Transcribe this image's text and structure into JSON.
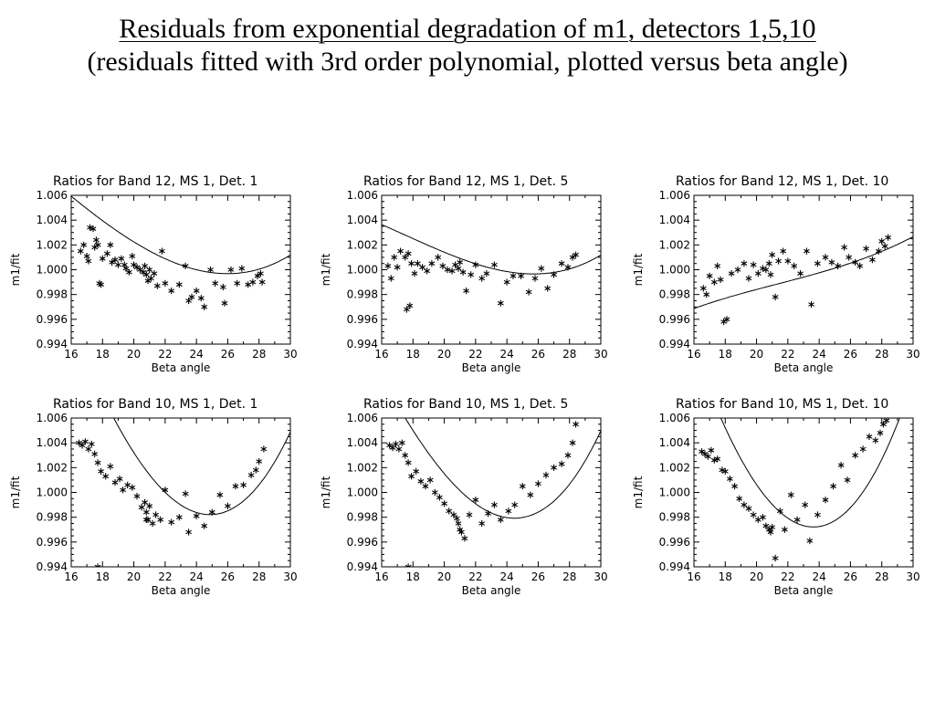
{
  "page": {
    "title": "Residuals from exponential degradation of m1, detectors 1,5,10",
    "subtitle": "(residuals fitted with 3rd order polynomial, plotted versus beta angle)"
  },
  "chart_data": [
    {
      "type": "scatter",
      "title": "Ratios for Band  12, MS 1, Det. 1",
      "xlabel": "Beta angle",
      "ylabel": "m1/fit",
      "xlim": [
        16,
        30
      ],
      "ylim": [
        0.994,
        1.006
      ],
      "xticks": [
        "16",
        "18",
        "20",
        "22",
        "24",
        "26",
        "28",
        "30"
      ],
      "yticks": [
        "0.994",
        "0.996",
        "0.998",
        "1.000",
        "1.002",
        "1.004",
        "1.006"
      ],
      "fit_coeffs": [
        1.0,
        -0.00031,
        7.15e-05,
        2.2e-06
      ],
      "points": [
        [
          16.6,
          1.0015
        ],
        [
          16.8,
          1.002
        ],
        [
          17.0,
          1.0011
        ],
        [
          17.1,
          1.0007
        ],
        [
          17.2,
          1.0034
        ],
        [
          17.4,
          1.0033
        ],
        [
          17.5,
          1.0018
        ],
        [
          17.6,
          1.0024
        ],
        [
          17.7,
          1.002
        ],
        [
          17.8,
          0.9989
        ],
        [
          17.9,
          0.9988
        ],
        [
          18.0,
          1.0009
        ],
        [
          18.3,
          1.0013
        ],
        [
          18.5,
          1.002
        ],
        [
          18.6,
          1.0006
        ],
        [
          18.8,
          1.0008
        ],
        [
          19.0,
          1.0004
        ],
        [
          19.2,
          1.0009
        ],
        [
          19.4,
          1.0004
        ],
        [
          19.5,
          1.0001
        ],
        [
          19.7,
          0.9998
        ],
        [
          19.9,
          1.0011
        ],
        [
          20.0,
          1.0004
        ],
        [
          20.2,
          1.0002
        ],
        [
          20.4,
          1.0
        ],
        [
          20.6,
          0.9998
        ],
        [
          20.7,
          1.0003
        ],
        [
          20.8,
          0.9996
        ],
        [
          20.9,
          0.9991
        ],
        [
          21.0,
          1.0
        ],
        [
          21.1,
          0.9993
        ],
        [
          21.3,
          0.9997
        ],
        [
          21.5,
          0.9987
        ],
        [
          21.8,
          1.0015
        ],
        [
          22.0,
          0.9989
        ],
        [
          22.4,
          0.9983
        ],
        [
          22.9,
          0.9988
        ],
        [
          23.3,
          1.0003
        ],
        [
          23.5,
          0.9975
        ],
        [
          23.7,
          0.9978
        ],
        [
          24.0,
          0.9983
        ],
        [
          24.3,
          0.9977
        ],
        [
          24.5,
          0.997
        ],
        [
          24.9,
          1.0
        ],
        [
          25.2,
          0.9989
        ],
        [
          25.7,
          0.9986
        ],
        [
          25.8,
          0.9973
        ],
        [
          26.2,
          1.0
        ],
        [
          26.6,
          0.9989
        ],
        [
          26.9,
          1.0001
        ],
        [
          27.3,
          0.9988
        ],
        [
          27.6,
          0.999
        ],
        [
          27.9,
          0.9995
        ],
        [
          28.1,
          0.9997
        ],
        [
          28.2,
          0.999
        ]
      ]
    },
    {
      "type": "scatter",
      "title": "Ratios for Band  12, MS 1, Det. 5",
      "xlabel": "Beta angle",
      "ylabel": "m1/fit",
      "xlim": [
        16,
        30
      ],
      "ylim": [
        0.994,
        1.006
      ],
      "xticks": [
        "16",
        "18",
        "20",
        "22",
        "24",
        "26",
        "28",
        "30"
      ],
      "yticks": [
        "0.994",
        "0.996",
        "0.998",
        "1.000",
        "1.002",
        "1.004",
        "1.006"
      ],
      "fit_coeffs": [
        0.99985,
        -0.000215,
        5.55e-05,
        2.9e-06
      ],
      "points": [
        [
          16.4,
          1.0003
        ],
        [
          16.6,
          0.9993
        ],
        [
          16.8,
          1.001
        ],
        [
          17.0,
          1.0002
        ],
        [
          17.2,
          1.0015
        ],
        [
          17.5,
          1.001
        ],
        [
          17.7,
          1.0013
        ],
        [
          17.9,
          1.0005
        ],
        [
          17.6,
          0.9968
        ],
        [
          17.8,
          0.9971
        ],
        [
          18.1,
          0.9997
        ],
        [
          18.3,
          1.0005
        ],
        [
          18.6,
          1.0002
        ],
        [
          18.9,
          0.9999
        ],
        [
          19.2,
          1.0005
        ],
        [
          19.6,
          1.001
        ],
        [
          19.9,
          1.0003
        ],
        [
          20.2,
          1.0
        ],
        [
          20.5,
          0.9999
        ],
        [
          20.7,
          1.0004
        ],
        [
          20.9,
          1.0001
        ],
        [
          21.0,
          1.0006
        ],
        [
          21.2,
          0.9998
        ],
        [
          21.4,
          0.9983
        ],
        [
          21.7,
          0.9996
        ],
        [
          22.0,
          1.0004
        ],
        [
          22.4,
          0.9993
        ],
        [
          22.7,
          0.9997
        ],
        [
          23.2,
          1.0004
        ],
        [
          23.6,
          0.9973
        ],
        [
          24.0,
          0.999
        ],
        [
          24.4,
          0.9995
        ],
        [
          24.9,
          0.9995
        ],
        [
          25.4,
          0.9982
        ],
        [
          25.8,
          0.9993
        ],
        [
          26.2,
          1.0001
        ],
        [
          26.6,
          0.9985
        ],
        [
          27.0,
          0.9996
        ],
        [
          27.5,
          1.0005
        ],
        [
          27.9,
          1.0002
        ],
        [
          28.2,
          1.001
        ],
        [
          28.4,
          1.0012
        ]
      ]
    },
    {
      "type": "scatter",
      "title": "Ratios for Band  12, MS 1, Det. 10",
      "xlabel": "Beta angle",
      "ylabel": "m1/fit",
      "xlim": [
        16,
        30
      ],
      "ylim": [
        0.994,
        1.006
      ],
      "xticks": [
        "16",
        "18",
        "20",
        "22",
        "24",
        "26",
        "28",
        "30"
      ],
      "yticks": [
        "0.994",
        "0.996",
        "0.998",
        "1.000",
        "1.002",
        "1.004",
        "1.006"
      ],
      "fit_coeffs": [
        0.99975,
        0.00036,
        1.2e-05,
        1.5e-06
      ],
      "points": [
        [
          16.6,
          0.9985
        ],
        [
          16.8,
          0.998
        ],
        [
          17.0,
          0.9995
        ],
        [
          17.3,
          0.999
        ],
        [
          17.5,
          1.0003
        ],
        [
          17.7,
          0.9992
        ],
        [
          17.9,
          0.9958
        ],
        [
          18.1,
          0.996
        ],
        [
          18.4,
          0.9997
        ],
        [
          18.8,
          1.0
        ],
        [
          19.2,
          1.0005
        ],
        [
          19.5,
          0.9993
        ],
        [
          19.8,
          1.0004
        ],
        [
          20.1,
          0.9997
        ],
        [
          20.4,
          1.0001
        ],
        [
          20.6,
          1.0
        ],
        [
          20.8,
          1.0005
        ],
        [
          20.9,
          0.9996
        ],
        [
          21.0,
          1.0012
        ],
        [
          21.2,
          0.9978
        ],
        [
          21.4,
          1.0007
        ],
        [
          21.7,
          1.0015
        ],
        [
          22.0,
          1.0007
        ],
        [
          22.4,
          1.0003
        ],
        [
          22.8,
          0.9997
        ],
        [
          23.2,
          1.0015
        ],
        [
          23.5,
          0.9972
        ],
        [
          23.9,
          1.0005
        ],
        [
          24.4,
          1.001
        ],
        [
          24.8,
          1.0006
        ],
        [
          25.2,
          1.0003
        ],
        [
          25.6,
          1.0018
        ],
        [
          25.9,
          1.001
        ],
        [
          26.3,
          1.0006
        ],
        [
          26.6,
          1.0003
        ],
        [
          27.0,
          1.0017
        ],
        [
          27.4,
          1.0008
        ],
        [
          27.8,
          1.0015
        ],
        [
          28.0,
          1.0023
        ],
        [
          28.2,
          1.0019
        ],
        [
          28.4,
          1.0026
        ]
      ]
    },
    {
      "type": "scatter",
      "title": "Ratios for Band  10, MS 1, Det. 1",
      "xlabel": "Beta angle",
      "ylabel": "m1/fit",
      "xlim": [
        16,
        30
      ],
      "ylim": [
        0.994,
        1.006
      ],
      "xticks": [
        "16",
        "18",
        "20",
        "22",
        "24",
        "26",
        "28",
        "30"
      ],
      "yticks": [
        "0.994",
        "0.996",
        "0.998",
        "1.000",
        "1.002",
        "1.004",
        "1.006"
      ],
      "fit_coeffs": [
        0.99838,
        -0.00039,
        0.000221,
        4.1e-06
      ],
      "points": [
        [
          16.5,
          1.004
        ],
        [
          16.7,
          1.0038
        ],
        [
          16.9,
          1.0041
        ],
        [
          17.1,
          1.0035
        ],
        [
          17.3,
          1.0039
        ],
        [
          17.5,
          1.0031
        ],
        [
          17.7,
          1.0024
        ],
        [
          17.9,
          1.0017
        ],
        [
          18.2,
          1.0013
        ],
        [
          18.5,
          1.0021
        ],
        [
          18.8,
          1.0008
        ],
        [
          19.1,
          1.0011
        ],
        [
          19.3,
          1.0002
        ],
        [
          19.6,
          1.0006
        ],
        [
          19.9,
          1.0004
        ],
        [
          20.2,
          0.9997
        ],
        [
          20.5,
          0.9988
        ],
        [
          20.7,
          0.9992
        ],
        [
          20.8,
          0.9984
        ],
        [
          20.9,
          0.9978
        ],
        [
          21.0,
          0.9989
        ],
        [
          21.2,
          0.9975
        ],
        [
          21.4,
          0.9982
        ],
        [
          21.7,
          0.9978
        ],
        [
          22.0,
          1.0002
        ],
        [
          22.4,
          0.9976
        ],
        [
          22.9,
          0.998
        ],
        [
          23.3,
          0.9999
        ],
        [
          23.5,
          0.9968
        ],
        [
          24.0,
          0.9981
        ],
        [
          24.5,
          0.9973
        ],
        [
          25.0,
          0.9984
        ],
        [
          25.5,
          0.9998
        ],
        [
          26.0,
          0.9989
        ],
        [
          26.5,
          1.0005
        ],
        [
          27.0,
          1.0006
        ],
        [
          27.5,
          1.0014
        ],
        [
          27.8,
          1.0018
        ],
        [
          28.0,
          1.0025
        ],
        [
          28.3,
          1.0035
        ],
        [
          17.7,
          0.994
        ],
        [
          20.8,
          0.9978
        ]
      ]
    },
    {
      "type": "scatter",
      "title": "Ratios for Band  10, MS 1, Det. 5",
      "xlabel": "Beta angle",
      "ylabel": "m1/fit",
      "xlim": [
        16,
        30
      ],
      "ylim": [
        0.994,
        1.006
      ],
      "xticks": [
        "16",
        "18",
        "20",
        "22",
        "24",
        "26",
        "28",
        "30"
      ],
      "yticks": [
        "0.994",
        "0.996",
        "0.998",
        "1.000",
        "1.002",
        "1.004",
        "1.006"
      ],
      "fit_coeffs": [
        0.99797,
        -0.00019,
        0.000195,
        5.2e-06
      ],
      "points": [
        [
          16.5,
          1.0038
        ],
        [
          16.7,
          1.0036
        ],
        [
          16.9,
          1.0039
        ],
        [
          17.1,
          1.0035
        ],
        [
          17.3,
          1.004
        ],
        [
          17.5,
          1.003
        ],
        [
          17.7,
          1.0024
        ],
        [
          17.9,
          1.0013
        ],
        [
          18.2,
          1.0017
        ],
        [
          18.5,
          1.0009
        ],
        [
          18.8,
          1.0005
        ],
        [
          19.1,
          1.001
        ],
        [
          19.4,
          1.0
        ],
        [
          19.7,
          0.9996
        ],
        [
          20.0,
          0.9991
        ],
        [
          20.3,
          0.9985
        ],
        [
          20.6,
          0.9982
        ],
        [
          20.8,
          0.9979
        ],
        [
          20.9,
          0.9975
        ],
        [
          21.0,
          0.997
        ],
        [
          21.1,
          0.9968
        ],
        [
          21.3,
          0.9963
        ],
        [
          21.6,
          0.9982
        ],
        [
          22.0,
          0.9994
        ],
        [
          22.4,
          0.9975
        ],
        [
          22.8,
          0.9983
        ],
        [
          23.2,
          0.999
        ],
        [
          23.6,
          0.9978
        ],
        [
          24.1,
          0.9985
        ],
        [
          24.5,
          0.999
        ],
        [
          25.0,
          1.0005
        ],
        [
          25.5,
          0.9998
        ],
        [
          26.0,
          1.0007
        ],
        [
          26.5,
          1.0014
        ],
        [
          27.0,
          1.002
        ],
        [
          27.5,
          1.0023
        ],
        [
          27.9,
          1.003
        ],
        [
          28.2,
          1.004
        ],
        [
          28.4,
          1.0055
        ],
        [
          17.7,
          0.994
        ]
      ]
    },
    {
      "type": "scatter",
      "title": "Ratios for Band  10, MS 1, Det. 10",
      "xlabel": "Beta angle",
      "ylabel": "m1/fit",
      "xlim": [
        16,
        30
      ],
      "ylim": [
        0.994,
        1.006
      ],
      "xticks": [
        "16",
        "18",
        "20",
        "22",
        "24",
        "26",
        "28",
        "30"
      ],
      "yticks": [
        "0.994",
        "0.996",
        "0.998",
        "1.000",
        "1.002",
        "1.004",
        "1.006"
      ],
      "fit_coeffs": [
        0.99725,
        0.0002,
        0.000275,
        3.4e-06
      ],
      "points": [
        [
          16.5,
          1.0033
        ],
        [
          16.7,
          1.0031
        ],
        [
          16.9,
          1.0029
        ],
        [
          17.1,
          1.0034
        ],
        [
          17.3,
          1.0026
        ],
        [
          17.5,
          1.0027
        ],
        [
          17.8,
          1.0018
        ],
        [
          18.0,
          1.0017
        ],
        [
          18.3,
          1.0011
        ],
        [
          18.6,
          1.0005
        ],
        [
          18.9,
          0.9995
        ],
        [
          19.2,
          0.999
        ],
        [
          19.5,
          0.9987
        ],
        [
          19.8,
          0.9982
        ],
        [
          20.1,
          0.9978
        ],
        [
          20.4,
          0.998
        ],
        [
          20.6,
          0.9973
        ],
        [
          20.8,
          0.997
        ],
        [
          20.9,
          0.9968
        ],
        [
          21.0,
          0.9972
        ],
        [
          21.2,
          0.9947
        ],
        [
          21.5,
          0.9985
        ],
        [
          21.8,
          0.997
        ],
        [
          22.2,
          0.9998
        ],
        [
          22.6,
          0.9978
        ],
        [
          23.1,
          0.999
        ],
        [
          23.4,
          0.9961
        ],
        [
          23.9,
          0.9982
        ],
        [
          24.4,
          0.9994
        ],
        [
          24.9,
          1.0005
        ],
        [
          25.4,
          1.0022
        ],
        [
          25.8,
          1.001
        ],
        [
          26.3,
          1.003
        ],
        [
          26.8,
          1.0035
        ],
        [
          27.2,
          1.0045
        ],
        [
          27.6,
          1.0042
        ],
        [
          27.9,
          1.0048
        ],
        [
          28.1,
          1.0055
        ],
        [
          28.3,
          1.0058
        ]
      ]
    }
  ]
}
